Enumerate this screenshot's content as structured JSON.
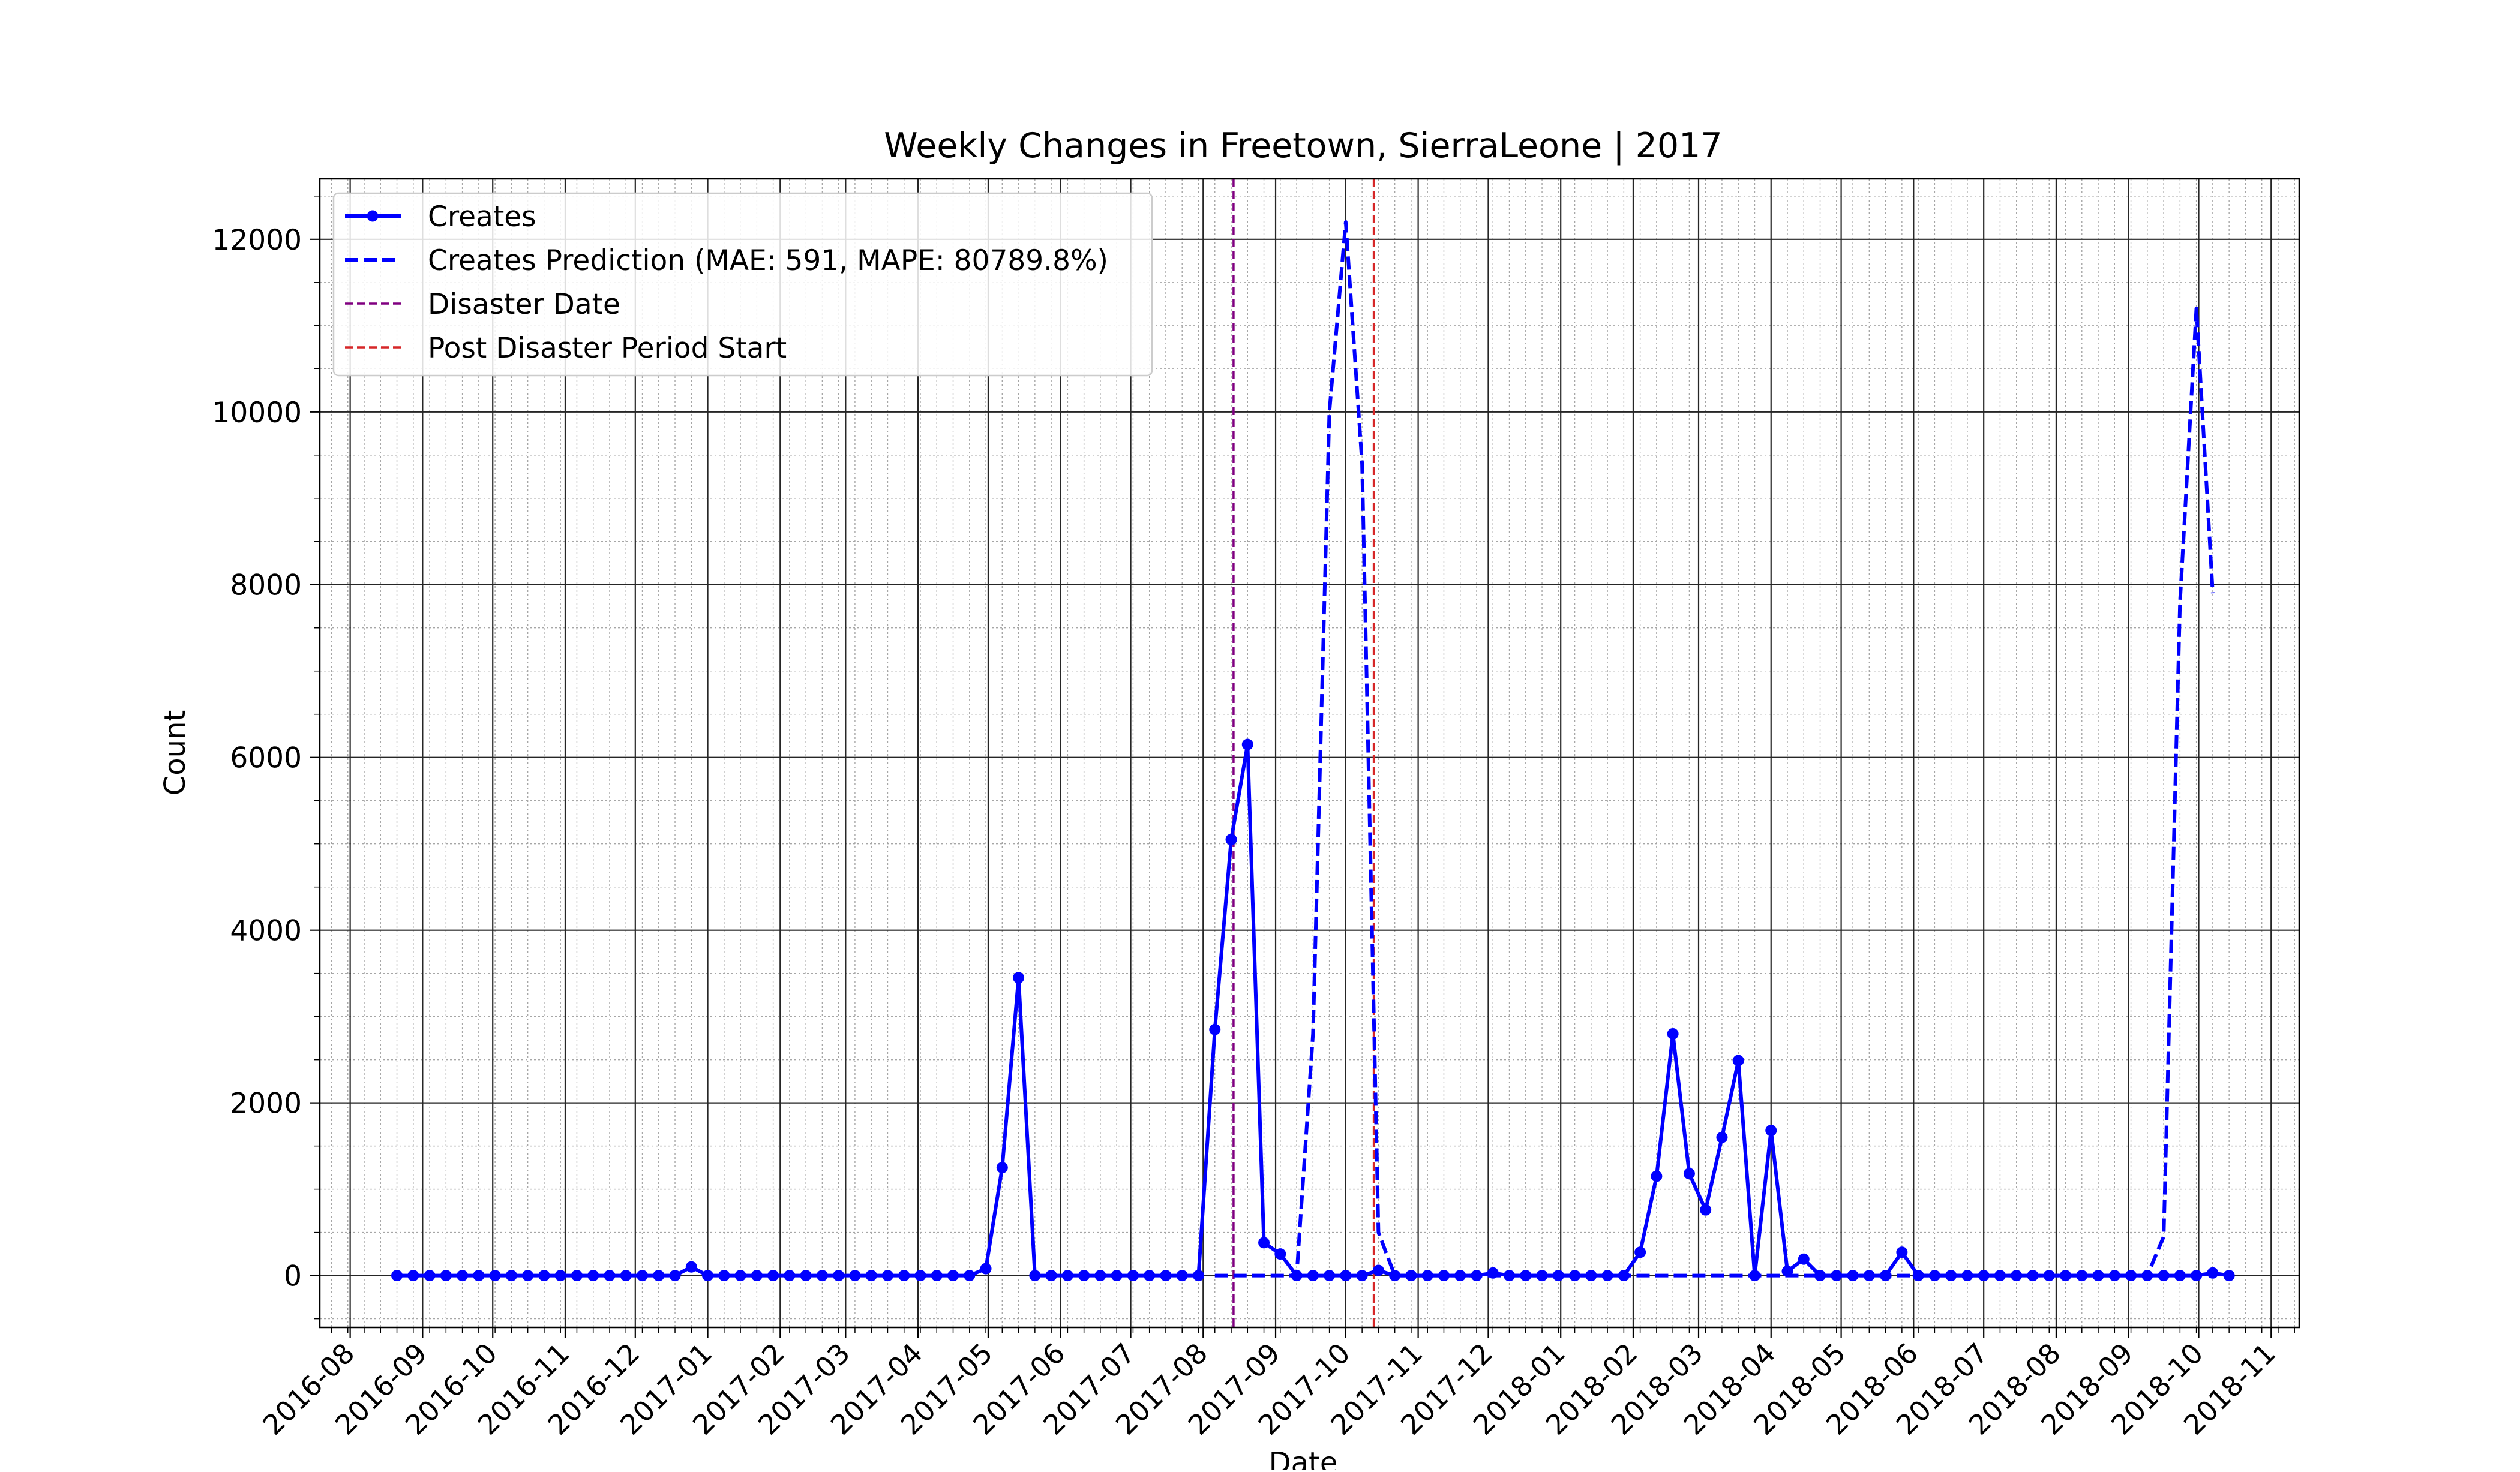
{
  "chart_data": {
    "type": "line",
    "title": "Weekly Changes in Freetown, SierraLeone | 2017",
    "xlabel": "Date",
    "ylabel": "Count",
    "xlim": [
      "2016-07-19",
      "2018-11-13"
    ],
    "ylim": [
      -600,
      12700
    ],
    "x_tick_labels": [
      "2016-08",
      "2016-09",
      "2016-10",
      "2016-11",
      "2016-12",
      "2017-01",
      "2017-02",
      "2017-03",
      "2017-04",
      "2017-05",
      "2017-06",
      "2017-07",
      "2017-08",
      "2017-09",
      "2017-10",
      "2017-11",
      "2017-12",
      "2018-01",
      "2018-02",
      "2018-03",
      "2018-04",
      "2018-05",
      "2018-06",
      "2018-07",
      "2018-08",
      "2018-09",
      "2018-10",
      "2018-11"
    ],
    "y_ticks": [
      0,
      2000,
      4000,
      6000,
      8000,
      10000,
      12000
    ],
    "grid": {
      "major": true,
      "minor": true
    },
    "legend_position": "upper-left",
    "series": [
      {
        "name": "Creates",
        "style": "solid-with-markers",
        "color": "#0000ff",
        "points": [
          [
            "2016-08-21",
            0
          ],
          [
            "2016-08-28",
            0
          ],
          [
            "2016-09-04",
            0
          ],
          [
            "2016-09-11",
            0
          ],
          [
            "2016-09-18",
            0
          ],
          [
            "2016-09-25",
            0
          ],
          [
            "2016-10-02",
            0
          ],
          [
            "2016-10-09",
            0
          ],
          [
            "2016-10-16",
            0
          ],
          [
            "2016-10-23",
            0
          ],
          [
            "2016-10-30",
            0
          ],
          [
            "2016-11-06",
            0
          ],
          [
            "2016-11-13",
            0
          ],
          [
            "2016-11-20",
            0
          ],
          [
            "2016-11-27",
            0
          ],
          [
            "2016-12-04",
            0
          ],
          [
            "2016-12-11",
            0
          ],
          [
            "2016-12-18",
            0
          ],
          [
            "2016-12-25",
            100
          ],
          [
            "2017-01-01",
            0
          ],
          [
            "2017-01-08",
            0
          ],
          [
            "2017-01-15",
            0
          ],
          [
            "2017-01-22",
            0
          ],
          [
            "2017-01-29",
            0
          ],
          [
            "2017-02-05",
            0
          ],
          [
            "2017-02-12",
            0
          ],
          [
            "2017-02-19",
            0
          ],
          [
            "2017-02-26",
            0
          ],
          [
            "2017-03-05",
            0
          ],
          [
            "2017-03-12",
            0
          ],
          [
            "2017-03-19",
            0
          ],
          [
            "2017-03-26",
            0
          ],
          [
            "2017-04-02",
            0
          ],
          [
            "2017-04-09",
            0
          ],
          [
            "2017-04-16",
            0
          ],
          [
            "2017-04-23",
            0
          ],
          [
            "2017-04-30",
            80
          ],
          [
            "2017-05-07",
            1250
          ],
          [
            "2017-05-14",
            3450
          ],
          [
            "2017-05-21",
            0
          ],
          [
            "2017-05-28",
            0
          ],
          [
            "2017-06-04",
            0
          ],
          [
            "2017-06-11",
            0
          ],
          [
            "2017-06-18",
            0
          ],
          [
            "2017-06-25",
            0
          ],
          [
            "2017-07-02",
            0
          ],
          [
            "2017-07-09",
            0
          ],
          [
            "2017-07-16",
            0
          ],
          [
            "2017-07-23",
            0
          ],
          [
            "2017-07-30",
            0
          ],
          [
            "2017-08-06",
            2850
          ],
          [
            "2017-08-13",
            5050
          ],
          [
            "2017-08-20",
            6150
          ],
          [
            "2017-08-27",
            380
          ],
          [
            "2017-09-03",
            250
          ],
          [
            "2017-09-10",
            0
          ],
          [
            "2017-09-17",
            0
          ],
          [
            "2017-09-24",
            0
          ],
          [
            "2017-10-01",
            0
          ],
          [
            "2017-10-08",
            0
          ],
          [
            "2017-10-15",
            60
          ],
          [
            "2017-10-22",
            0
          ],
          [
            "2017-10-29",
            0
          ],
          [
            "2017-11-05",
            0
          ],
          [
            "2017-11-12",
            0
          ],
          [
            "2017-11-19",
            0
          ],
          [
            "2017-11-26",
            0
          ],
          [
            "2017-12-03",
            30
          ],
          [
            "2017-12-10",
            0
          ],
          [
            "2017-12-17",
            0
          ],
          [
            "2017-12-24",
            0
          ],
          [
            "2017-12-31",
            0
          ],
          [
            "2018-01-07",
            0
          ],
          [
            "2018-01-14",
            0
          ],
          [
            "2018-01-21",
            0
          ],
          [
            "2018-01-28",
            0
          ],
          [
            "2018-02-04",
            270
          ],
          [
            "2018-02-11",
            1150
          ],
          [
            "2018-02-18",
            2800
          ],
          [
            "2018-02-25",
            1180
          ],
          [
            "2018-03-04",
            760
          ],
          [
            "2018-03-11",
            1600
          ],
          [
            "2018-03-18",
            2490
          ],
          [
            "2018-03-25",
            0
          ],
          [
            "2018-04-01",
            1680
          ],
          [
            "2018-04-08",
            50
          ],
          [
            "2018-04-15",
            190
          ],
          [
            "2018-04-22",
            0
          ],
          [
            "2018-04-29",
            0
          ],
          [
            "2018-05-06",
            0
          ],
          [
            "2018-05-13",
            0
          ],
          [
            "2018-05-20",
            0
          ],
          [
            "2018-05-27",
            270
          ],
          [
            "2018-06-03",
            0
          ],
          [
            "2018-06-10",
            0
          ],
          [
            "2018-06-17",
            0
          ],
          [
            "2018-06-24",
            0
          ],
          [
            "2018-07-01",
            0
          ],
          [
            "2018-07-08",
            0
          ],
          [
            "2018-07-15",
            0
          ],
          [
            "2018-07-22",
            0
          ],
          [
            "2018-07-29",
            0
          ],
          [
            "2018-08-05",
            0
          ],
          [
            "2018-08-12",
            0
          ],
          [
            "2018-08-19",
            0
          ],
          [
            "2018-08-26",
            0
          ],
          [
            "2018-09-02",
            0
          ],
          [
            "2018-09-09",
            0
          ],
          [
            "2018-09-16",
            0
          ],
          [
            "2018-09-23",
            0
          ],
          [
            "2018-09-30",
            0
          ],
          [
            "2018-10-07",
            30
          ],
          [
            "2018-10-14",
            0
          ]
        ]
      },
      {
        "name": "Creates Prediction (MAE: 591, MAPE: 80789.8%)",
        "style": "dashed",
        "color": "#0000ff",
        "points": [
          [
            "2017-08-06",
            0
          ],
          [
            "2017-08-13",
            0
          ],
          [
            "2017-08-20",
            0
          ],
          [
            "2017-08-27",
            0
          ],
          [
            "2017-09-03",
            0
          ],
          [
            "2017-09-10",
            0
          ],
          [
            "2017-09-17",
            2800
          ],
          [
            "2017-09-24",
            10000
          ],
          [
            "2017-10-01",
            12200
          ],
          [
            "2017-10-08",
            9400
          ],
          [
            "2017-10-15",
            500
          ],
          [
            "2017-10-22",
            0
          ],
          [
            "2017-10-29",
            0
          ],
          [
            "2017-11-05",
            0
          ],
          [
            "2017-11-12",
            0
          ],
          [
            "2017-11-19",
            0
          ],
          [
            "2017-11-26",
            0
          ],
          [
            "2017-12-03",
            0
          ],
          [
            "2017-12-10",
            0
          ],
          [
            "2017-12-17",
            0
          ],
          [
            "2017-12-24",
            0
          ],
          [
            "2017-12-31",
            0
          ],
          [
            "2018-01-07",
            0
          ],
          [
            "2018-01-14",
            0
          ],
          [
            "2018-01-21",
            0
          ],
          [
            "2018-01-28",
            0
          ],
          [
            "2018-02-04",
            0
          ],
          [
            "2018-02-11",
            0
          ],
          [
            "2018-02-18",
            0
          ],
          [
            "2018-02-25",
            0
          ],
          [
            "2018-03-04",
            0
          ],
          [
            "2018-03-11",
            0
          ],
          [
            "2018-03-18",
            0
          ],
          [
            "2018-03-25",
            0
          ],
          [
            "2018-04-01",
            0
          ],
          [
            "2018-04-08",
            0
          ],
          [
            "2018-04-15",
            0
          ],
          [
            "2018-04-22",
            0
          ],
          [
            "2018-04-29",
            0
          ],
          [
            "2018-05-06",
            0
          ],
          [
            "2018-05-13",
            0
          ],
          [
            "2018-05-20",
            0
          ],
          [
            "2018-05-27",
            0
          ],
          [
            "2018-06-03",
            0
          ],
          [
            "2018-06-10",
            0
          ],
          [
            "2018-06-17",
            0
          ],
          [
            "2018-06-24",
            0
          ],
          [
            "2018-07-01",
            0
          ],
          [
            "2018-07-08",
            0
          ],
          [
            "2018-07-15",
            0
          ],
          [
            "2018-07-22",
            0
          ],
          [
            "2018-07-29",
            0
          ],
          [
            "2018-08-05",
            0
          ],
          [
            "2018-08-12",
            0
          ],
          [
            "2018-08-19",
            0
          ],
          [
            "2018-08-26",
            0
          ],
          [
            "2018-09-02",
            0
          ],
          [
            "2018-09-09",
            0
          ],
          [
            "2018-09-16",
            450
          ],
          [
            "2018-09-23",
            7800
          ],
          [
            "2018-09-30",
            11200
          ],
          [
            "2018-10-07",
            7900
          ]
        ]
      }
    ],
    "vlines": [
      {
        "name": "Disaster Date",
        "date": "2017-08-14",
        "color": "#800080",
        "style": "dashed"
      },
      {
        "name": "Post Disaster Period Start",
        "date": "2017-10-13",
        "color": "#d62728",
        "style": "dashed"
      }
    ]
  }
}
